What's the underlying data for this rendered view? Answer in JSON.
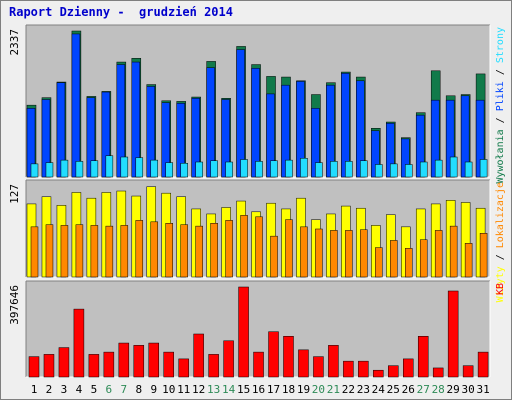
{
  "title": "Raport Dzienny -  grudzień 2014",
  "colors": {
    "hits": "#117a4a",
    "files": "#0045ff",
    "pages": "#22ddff",
    "visits": "#ffff00",
    "sites": "#ff8800",
    "kbytes": "#ff0000",
    "weekend": "#2e8b57",
    "weekday": "#000000",
    "panel_bg": "#c0c0c0"
  },
  "chart_data": [
    {
      "type": "bar",
      "ymax_label": "2337",
      "ylim": [
        0,
        2337
      ],
      "side_labels": [
        "Wywołania",
        "Pliki",
        "Strony"
      ],
      "side_separator": " / ",
      "series": [
        {
          "name": "Wywołania",
          "values": [
            1150,
            1270,
            1520,
            2337,
            1290,
            1370,
            1840,
            1900,
            1480,
            1220,
            1210,
            1280,
            1850,
            1260,
            2090,
            1800,
            1610,
            1600,
            1540,
            1320,
            1510,
            1680,
            1600,
            780,
            880,
            630,
            1030,
            1700,
            1300,
            1320,
            1650
          ]
        },
        {
          "name": "Pliki",
          "values": [
            1100,
            1240,
            1510,
            2290,
            1270,
            1360,
            1800,
            1840,
            1450,
            1190,
            1180,
            1260,
            1750,
            1240,
            2040,
            1740,
            1330,
            1470,
            1530,
            1100,
            1470,
            1660,
            1540,
            740,
            860,
            610,
            990,
            1230,
            1230,
            1300,
            1230
          ]
        },
        {
          "name": "Strony",
          "values": [
            210,
            230,
            270,
            250,
            260,
            340,
            320,
            310,
            270,
            230,
            220,
            240,
            260,
            240,
            280,
            250,
            260,
            270,
            300,
            230,
            250,
            250,
            260,
            200,
            210,
            200,
            240,
            270,
            320,
            240,
            280
          ]
        }
      ]
    },
    {
      "type": "bar",
      "ymax_label": "127",
      "ylim": [
        0,
        127
      ],
      "side_labels": [
        "Wizyty",
        "Lokalizacje"
      ],
      "side_separator": " / ",
      "series": [
        {
          "name": "Wizyty",
          "values": [
            102,
            112,
            100,
            118,
            110,
            118,
            120,
            113,
            126,
            117,
            112,
            95,
            88,
            97,
            106,
            91,
            103,
            95,
            110,
            80,
            88,
            99,
            96,
            72,
            87,
            70,
            95,
            102,
            107,
            104,
            96
          ]
        },
        {
          "name": "Lokalizacje",
          "values": [
            70,
            73,
            72,
            73,
            72,
            71,
            72,
            79,
            77,
            75,
            73,
            71,
            75,
            79,
            86,
            84,
            57,
            80,
            70,
            67,
            65,
            65,
            66,
            41,
            51,
            40,
            52,
            65,
            71,
            47,
            61
          ]
        }
      ]
    },
    {
      "type": "bar",
      "ymax_label": "397646",
      "ylim": [
        0,
        397646
      ],
      "side_labels": [
        "KB"
      ],
      "side_separator": "",
      "series": [
        {
          "name": "KB",
          "values": [
            90000,
            100000,
            130000,
            300000,
            100000,
            110000,
            150000,
            140000,
            150000,
            110000,
            80000,
            190000,
            100000,
            160000,
            397646,
            110000,
            200000,
            180000,
            120000,
            90000,
            140000,
            70000,
            70000,
            30000,
            50000,
            80000,
            180000,
            40000,
            380000,
            50000,
            110000
          ]
        }
      ]
    }
  ],
  "x_axis": {
    "days": [
      "1",
      "2",
      "3",
      "4",
      "5",
      "6",
      "7",
      "8",
      "9",
      "10",
      "11",
      "12",
      "13",
      "14",
      "15",
      "16",
      "17",
      "18",
      "19",
      "20",
      "21",
      "22",
      "23",
      "24",
      "25",
      "26",
      "27",
      "28",
      "29",
      "30",
      "31"
    ],
    "weekend_days": [
      "6",
      "7",
      "13",
      "14",
      "20",
      "21",
      "27",
      "28"
    ]
  }
}
